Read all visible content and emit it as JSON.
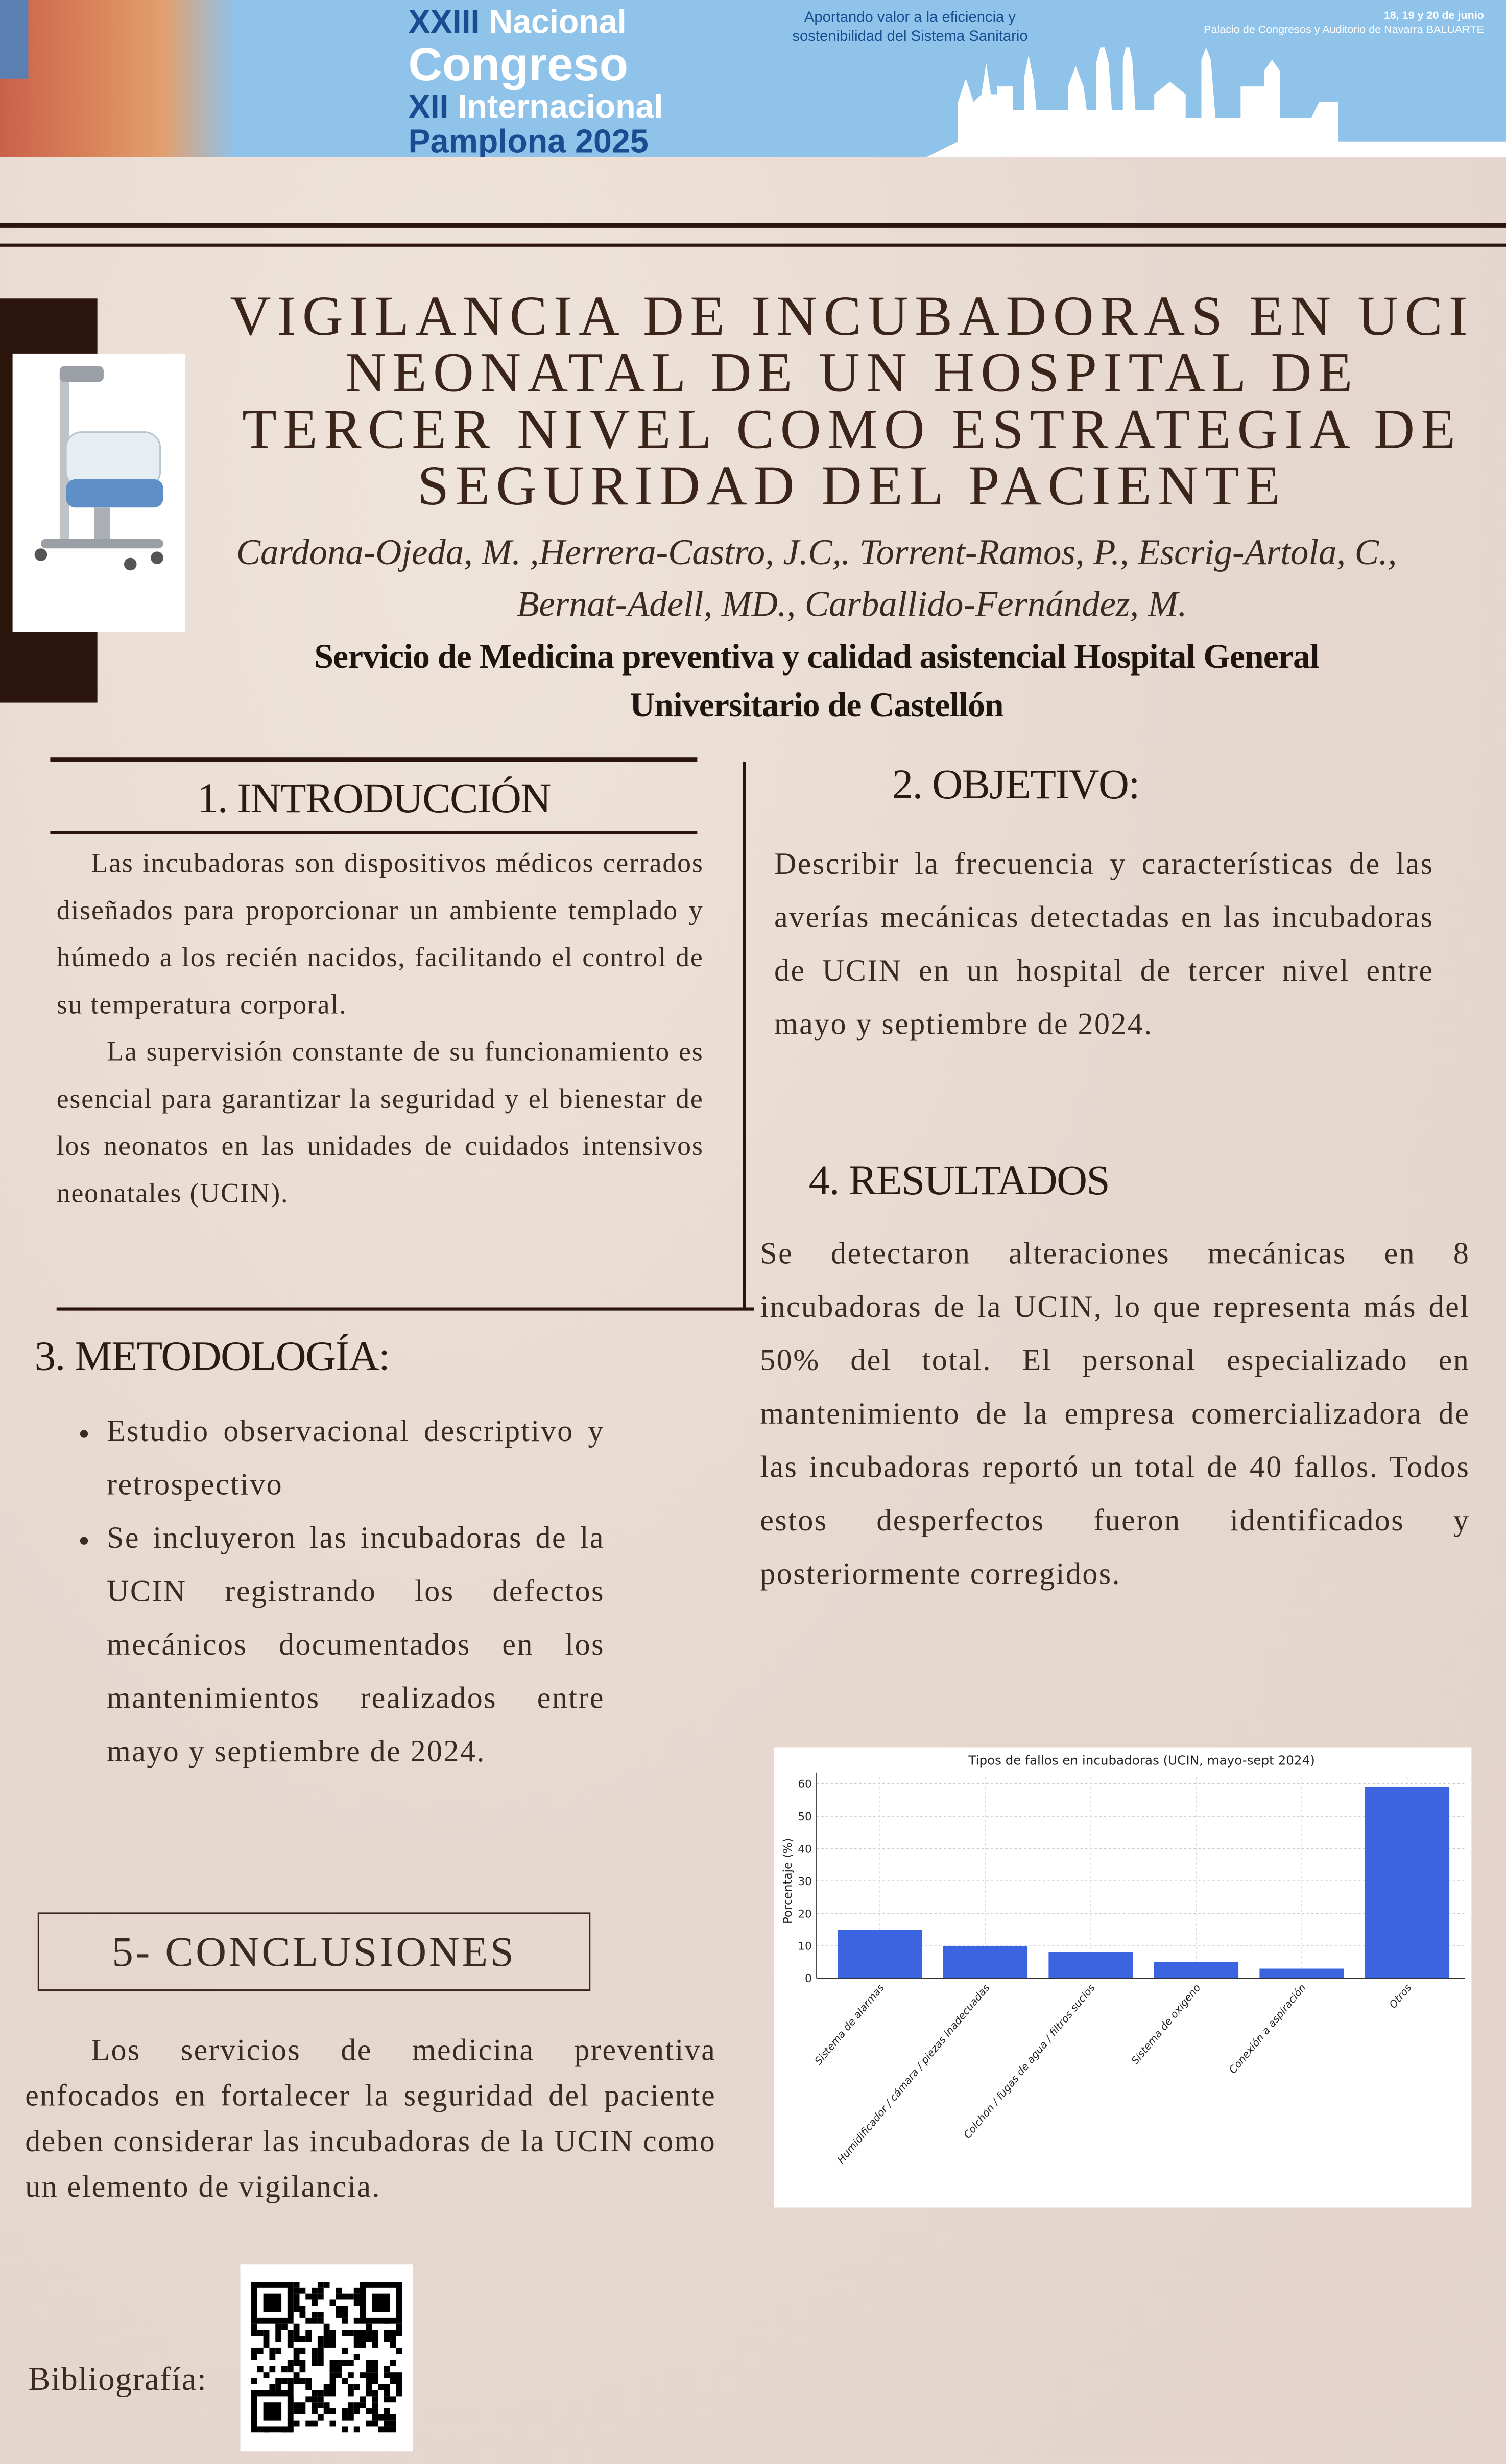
{
  "banner": {
    "line1a": "XXIII",
    "line1b": "Nacional",
    "line2": "Congreso",
    "line3a": "XII",
    "line3b": "Internacional",
    "line4": "Pamplona  2025",
    "tagline": "Aportando valor a la eficiencia y sostenibilidad del Sistema Sanitario",
    "dates": "18, 19 y 20 de junio",
    "venue": "Palacio de Congresos y Auditorio de Navarra BALUARTE",
    "color": "#8fc3ea"
  },
  "title": "VIGILANCIA DE INCUBADORAS EN UCI NEONATAL DE UN HOSPITAL DE TERCER NIVEL COMO ESTRATEGIA DE SEGURIDAD DEL PACIENTE",
  "authors_line1": "Cardona-Ojeda, M. ,Herrera-Castro, J.C,. Torrent-Ramos, P., Escrig-Artola, C.,",
  "authors_line2": "Bernat-Adell, MD.,  Carballido-Fernández, M.",
  "affiliation": "Servicio de Medicina preventiva y calidad asistencial Hospital General Universitario de Castellón",
  "intro": {
    "heading": "1. INTRODUCCIÓN",
    "p1": "Las incubadoras son dispositivos médicos cerrados diseñados para proporcionar un ambiente templado y húmedo a los recién nacidos, facilitando el control de su temperatura corporal.",
    "p2": "La supervisión constante de su funcionamiento es esencial para garantizar la seguridad y el bienestar de los neonatos en las unidades de cuidados intensivos neonatales (UCIN)."
  },
  "objective": {
    "heading": "2. OBJETIVO:",
    "text": "Describir la frecuencia y características de las averías mecánicas detectadas en las incubadoras de UCIN en un hospital de tercer nivel entre mayo y septiembre de 2024."
  },
  "methods": {
    "heading": "3. METODOLOGÍA:",
    "bullets": [
      "Estudio observacional descriptivo y retrospectivo",
      "Se incluyeron las incubadoras de la UCIN registrando los defectos mecánicos documentados en los mantenimientos realizados entre mayo y septiembre de 2024."
    ]
  },
  "results": {
    "heading": "4. RESULTADOS",
    "text": "Se detectaron alteraciones mecánicas en 8 incubadoras de la UCIN, lo que representa más del 50% del total. El personal especializado en mantenimiento de la empresa comercializadora de las incubadoras reportó un total de 40 fallos. Todos estos desperfectos fueron identificados y posteriormente corregidos."
  },
  "conclusions": {
    "heading": "5- CONCLUSIONES",
    "text": "Los servicios de medicina preventiva enfocados en fortalecer la seguridad del paciente deben considerar las incubadoras de la UCIN como un elemento de vigilancia."
  },
  "bibliography_label": "Bibliografía:",
  "chart_data": {
    "type": "bar",
    "title": "Tipos de fallos en incubadoras (UCIN, mayo-sept 2024)",
    "xlabel": "",
    "ylabel": "Porcentaje (%)",
    "categories": [
      "Sistema de alarmas",
      "Humidificador / cámara / piezas inadecuadas",
      "Colchón / fugas de agua / filtros sucios",
      "Sistema de oxígeno",
      "Conexión a aspiración",
      "Otros"
    ],
    "values": [
      15,
      10,
      8,
      5,
      3,
      59
    ],
    "ylim": [
      0,
      62
    ],
    "yticks": [
      0,
      10,
      20,
      30,
      40,
      50,
      60
    ],
    "grid": true,
    "bar_color": "#3d64e0"
  }
}
